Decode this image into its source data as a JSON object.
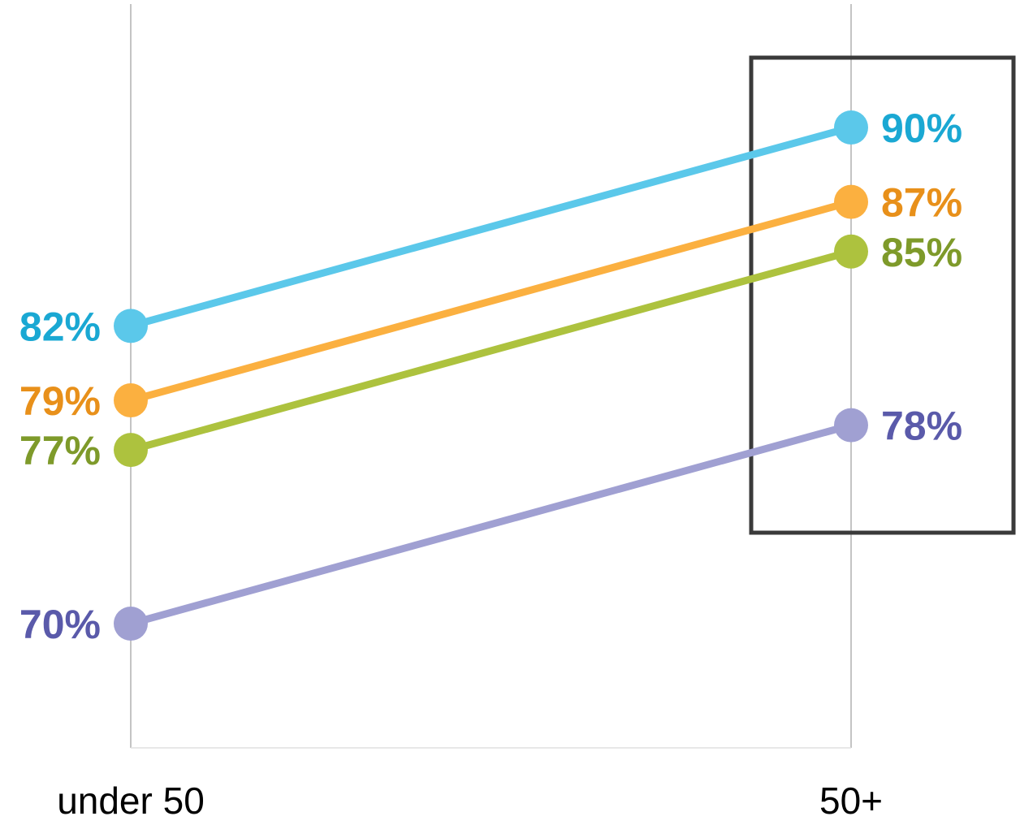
{
  "chart_data": {
    "type": "line",
    "subtype": "slope",
    "categories": [
      "under 50",
      "50+"
    ],
    "series": [
      {
        "values": [
          82,
          90
        ],
        "line_color": "#5BC8EA",
        "label_color": "#1AA8D3",
        "labels": [
          "82%",
          "90%"
        ]
      },
      {
        "values": [
          79,
          87
        ],
        "line_color": "#FBB040",
        "label_color": "#E8901A",
        "labels": [
          "79%",
          "87%"
        ]
      },
      {
        "values": [
          77,
          85
        ],
        "line_color": "#ADC23E",
        "label_color": "#7E9A2A",
        "labels": [
          "77%",
          "85%"
        ]
      },
      {
        "values": [
          70,
          78
        ],
        "line_color": "#A0A0D2",
        "label_color": "#5A5AAA",
        "labels": [
          "70%",
          "78%"
        ]
      }
    ],
    "ylim": [
      60,
      94
    ],
    "grid": false,
    "legend": "none",
    "highlight": {
      "category": "50+",
      "box_color": "#3a3a3a"
    },
    "axis_line_color": "#b0b0b0"
  }
}
